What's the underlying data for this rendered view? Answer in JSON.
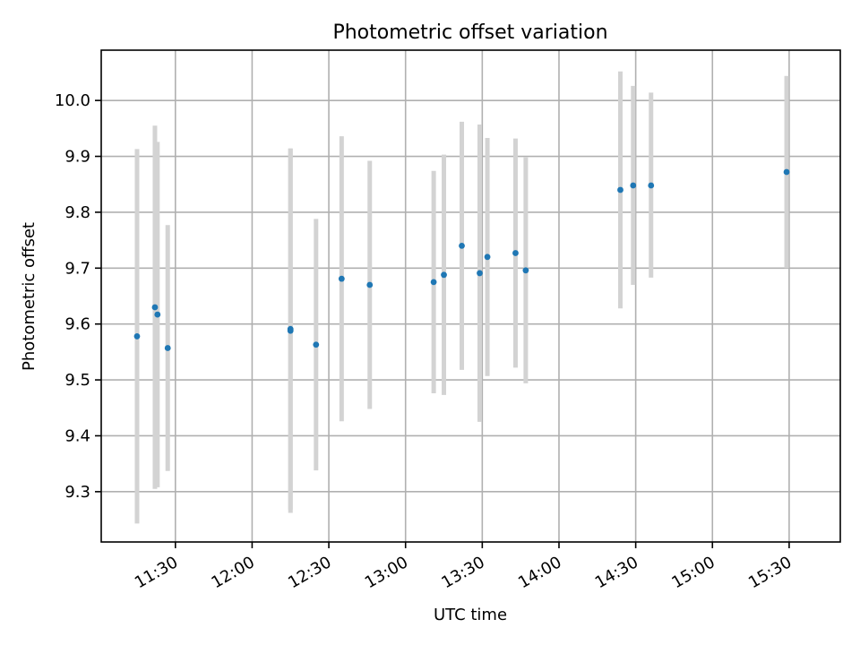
{
  "chart_data": {
    "type": "scatter",
    "title": "Photometric offset variation",
    "xlabel": "UTC time",
    "ylabel": "Photometric offset",
    "x_tick_labels": [
      "11:30",
      "12:00",
      "12:30",
      "13:00",
      "13:30",
      "14:00",
      "14:30",
      "15:00",
      "15:30"
    ],
    "y_tick_labels": [
      "9.3",
      "9.4",
      "9.5",
      "9.6",
      "9.7",
      "9.8",
      "9.9",
      "10.0"
    ],
    "xlim": [
      "11:01",
      "15:50"
    ],
    "ylim": [
      9.21,
      10.09
    ],
    "grid": true,
    "errorbar_color": "#d3d3d3",
    "point_color": "#1f77b4",
    "points": [
      {
        "x": "11:15",
        "y": 9.578,
        "ylow": 9.243,
        "yhigh": 9.913
      },
      {
        "x": "11:22",
        "y": 9.63,
        "ylow": 9.305,
        "yhigh": 9.955
      },
      {
        "x": "11:23",
        "y": 9.617,
        "ylow": 9.308,
        "yhigh": 9.926
      },
      {
        "x": "11:27",
        "y": 9.557,
        "ylow": 9.337,
        "yhigh": 9.777
      },
      {
        "x": "12:15",
        "y": 9.588,
        "ylow": 9.262,
        "yhigh": 9.914
      },
      {
        "x": "12:15",
        "y": 9.591,
        "ylow": 9.268,
        "yhigh": 9.914
      },
      {
        "x": "12:25",
        "y": 9.563,
        "ylow": 9.338,
        "yhigh": 9.788
      },
      {
        "x": "12:35",
        "y": 9.681,
        "ylow": 9.426,
        "yhigh": 9.936
      },
      {
        "x": "12:46",
        "y": 9.67,
        "ylow": 9.448,
        "yhigh": 9.892
      },
      {
        "x": "13:11",
        "y": 9.675,
        "ylow": 9.476,
        "yhigh": 9.874
      },
      {
        "x": "13:15",
        "y": 9.688,
        "ylow": 9.473,
        "yhigh": 9.903
      },
      {
        "x": "13:22",
        "y": 9.74,
        "ylow": 9.518,
        "yhigh": 9.962
      },
      {
        "x": "13:29",
        "y": 9.691,
        "ylow": 9.425,
        "yhigh": 9.957
      },
      {
        "x": "13:32",
        "y": 9.72,
        "ylow": 9.507,
        "yhigh": 9.933
      },
      {
        "x": "13:43",
        "y": 9.727,
        "ylow": 9.522,
        "yhigh": 9.932
      },
      {
        "x": "13:47",
        "y": 9.696,
        "ylow": 9.494,
        "yhigh": 9.898
      },
      {
        "x": "14:24",
        "y": 9.84,
        "ylow": 9.628,
        "yhigh": 10.052
      },
      {
        "x": "14:29",
        "y": 9.848,
        "ylow": 9.67,
        "yhigh": 10.026
      },
      {
        "x": "14:36",
        "y": 9.848,
        "ylow": 9.683,
        "yhigh": 10.014
      },
      {
        "x": "15:29",
        "y": 9.872,
        "ylow": 9.7,
        "yhigh": 10.044
      }
    ]
  }
}
